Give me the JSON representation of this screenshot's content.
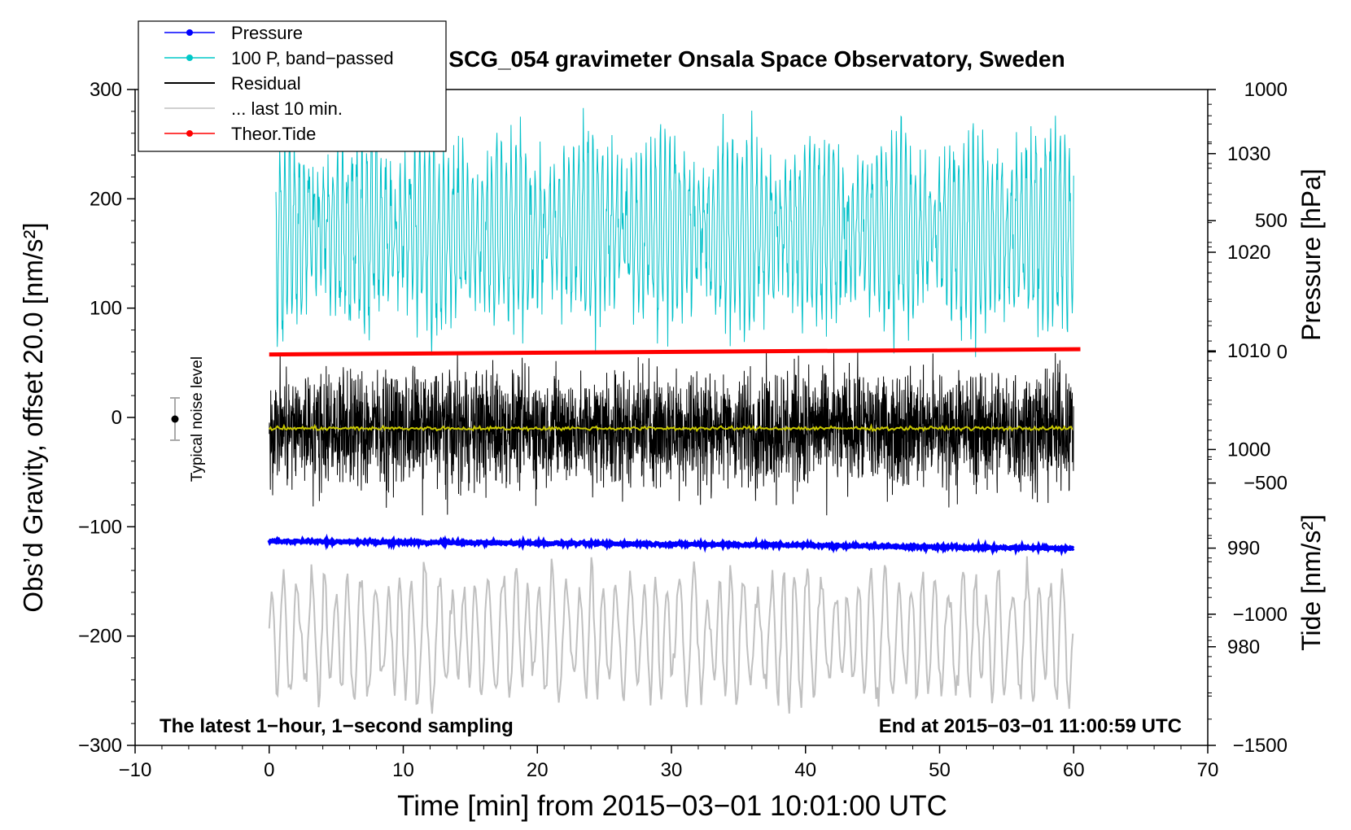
{
  "chart_data": {
    "type": "line",
    "title": "SCG_054 gravimeter Onsala Space Observatory, Sweden",
    "xlabel": "Time [min] from 2015−03−01 10:01:00 UTC",
    "ylabel_left": "Obs’d Gravity, offset 20.0 [nm/s²]",
    "ylabel_pressure": "Pressure [hPa]",
    "ylabel_tide": "Tide [nm/s²]",
    "xlim": [
      -10,
      70
    ],
    "ylim": [
      -300,
      300
    ],
    "x_ticks": [
      -10,
      0,
      10,
      20,
      30,
      40,
      50,
      60,
      70
    ],
    "x_tick_labels": [
      "−10",
      "0",
      "10",
      "20",
      "30",
      "40",
      "50",
      "60",
      "70"
    ],
    "y_ticks": [
      -300,
      -200,
      -100,
      0,
      100,
      200,
      300
    ],
    "y_tick_labels": [
      "−300",
      "−200",
      "−100",
      "0",
      "100",
      "200",
      "300"
    ],
    "pressure_axis": {
      "range": [
        970,
        1036.5
      ],
      "ticks": [
        980,
        990,
        1000,
        1010,
        1020,
        1030
      ],
      "tick_labels": [
        "980",
        "990",
        "1000",
        "1010",
        "1020",
        "1030"
      ]
    },
    "tide_axis": {
      "range": [
        -1500,
        1000
      ],
      "ticks": [
        -1500,
        -1000,
        -500,
        0,
        500,
        1000
      ],
      "tick_labels": [
        "−1500",
        "−1000",
        "−500",
        "0",
        "500",
        "1000"
      ]
    },
    "legend": {
      "position": "top-left",
      "entries": [
        {
          "label": "Pressure",
          "color": "#0000ff",
          "marker": "dot"
        },
        {
          "label": "100 P, band−passed",
          "color": "#00c8c8",
          "marker": "dot"
        },
        {
          "label": "Residual",
          "color": "#000000",
          "marker": "none"
        },
        {
          "label": "... last 10 min.",
          "color": "#c0c0c0",
          "marker": "none"
        },
        {
          "label": "Theor.Tide",
          "color": "#ff0000",
          "marker": "dot"
        }
      ]
    },
    "series": [
      {
        "name": "Pressure",
        "axis": "pressure",
        "x": [
          0,
          10,
          20,
          30,
          40,
          50,
          60
        ],
        "values": [
          990.7,
          990.6,
          990.5,
          990.4,
          990.3,
          990.1,
          990.0
        ]
      },
      {
        "name": "100 P, band−passed",
        "axis": "left",
        "x_range": [
          0.5,
          60
        ],
        "center": 170,
        "amplitude": 80
      },
      {
        "name": "Residual",
        "axis": "left",
        "x_range": [
          0,
          60
        ],
        "center": -10,
        "amplitude": 45
      },
      {
        "name": "Residual smoothed",
        "axis": "left",
        "color": "#c8c800",
        "x": [
          0,
          60
        ],
        "values": [
          -10,
          -10
        ]
      },
      {
        "name": "... last 10 min.",
        "axis": "left",
        "x_range": [
          0,
          60
        ],
        "center": -200,
        "amplitude": 60
      },
      {
        "name": "Theor.Tide",
        "axis": "tide",
        "x": [
          0,
          60.5
        ],
        "values": [
          -10,
          10
        ]
      }
    ],
    "noise_level": {
      "label": "Typical noise level",
      "x": -7,
      "y": 0,
      "range": [
        -20,
        20
      ]
    },
    "annotations": {
      "bottom_left": "The latest 1−hour, 1−second sampling",
      "bottom_right": "End at 2015−03−01 11:00:59 UTC"
    }
  }
}
